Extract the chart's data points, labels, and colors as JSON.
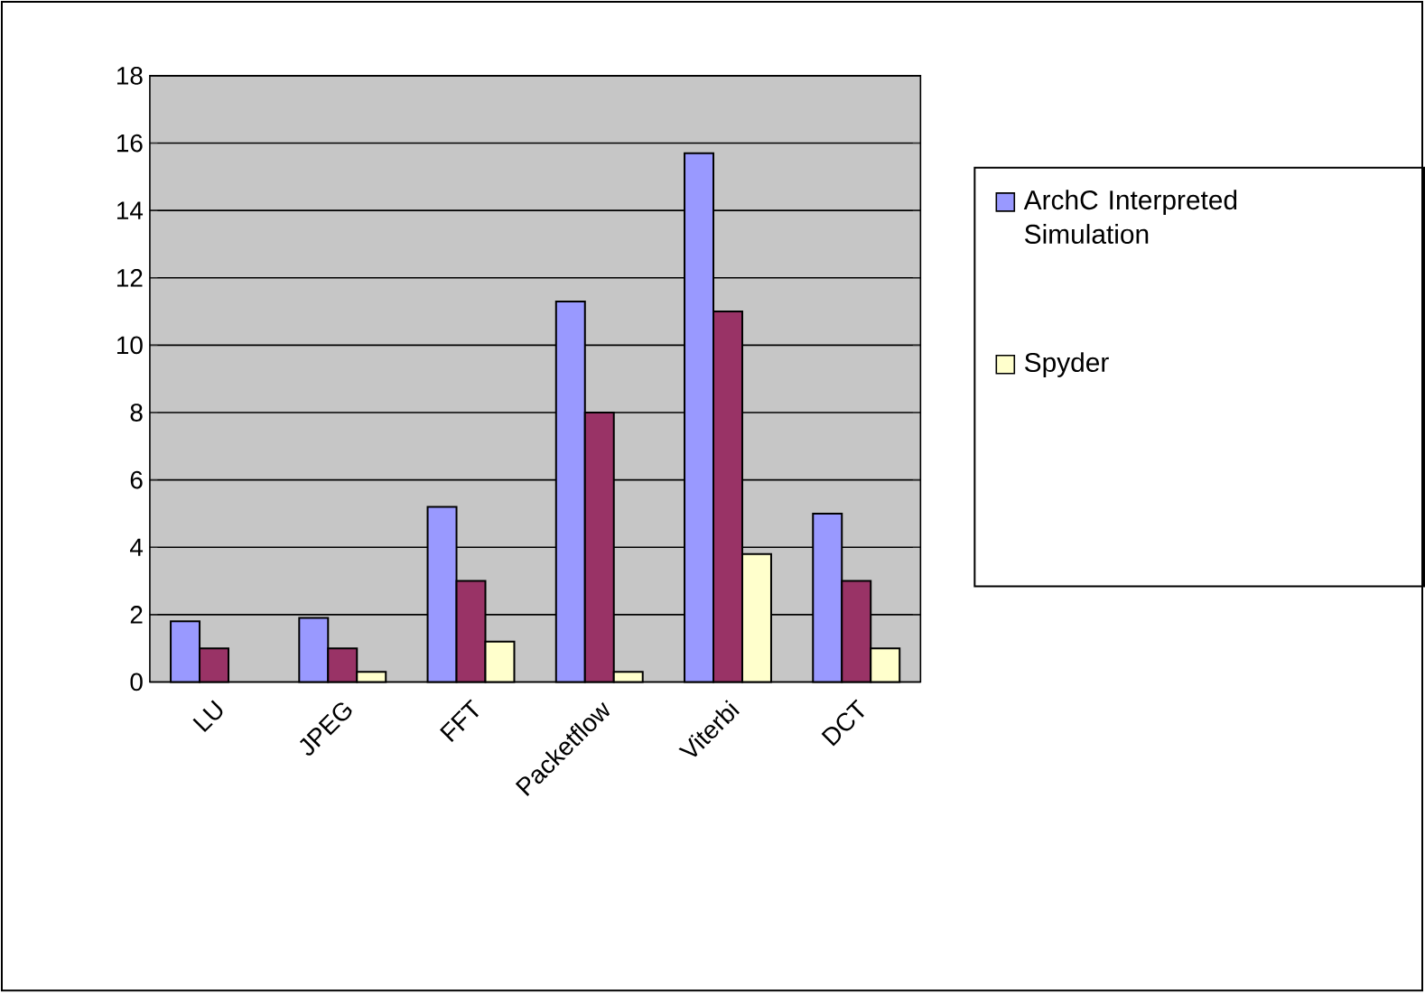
{
  "chart_data": {
    "type": "bar",
    "categories": [
      "LU",
      "JPEG",
      "FFT",
      "Packetflow",
      "Viterbi",
      "DCT"
    ],
    "series": [
      {
        "name": "ArchC Interpreted Simulation",
        "color": "#9999ff",
        "values": [
          1.8,
          1.9,
          5.2,
          11.3,
          15.7,
          5.0
        ]
      },
      {
        "color": "#993366",
        "values": [
          1.0,
          1.0,
          3.0,
          8.0,
          11.0,
          3.0
        ]
      },
      {
        "name": "Spyder",
        "color": "#ffffcc",
        "values": [
          null,
          0.3,
          1.2,
          0.3,
          3.8,
          1.0
        ]
      }
    ],
    "ylim": [
      0,
      18
    ],
    "yticks": [
      0,
      2,
      4,
      6,
      8,
      10,
      12,
      14,
      16,
      18
    ],
    "grid": "y",
    "legend": "right"
  }
}
